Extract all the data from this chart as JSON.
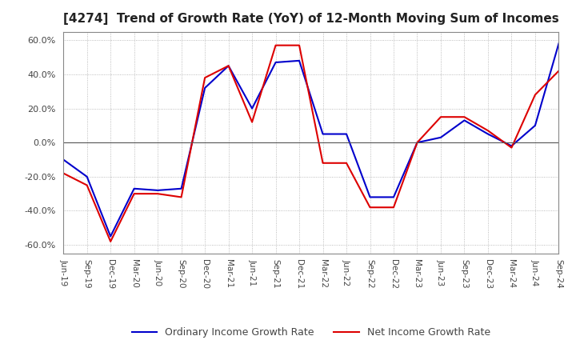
{
  "title": "[4274]  Trend of Growth Rate (YoY) of 12-Month Moving Sum of Incomes",
  "ylim": [
    -0.65,
    0.65
  ],
  "yticks": [
    -0.6,
    -0.4,
    -0.2,
    0.0,
    0.2,
    0.4,
    0.6
  ],
  "background_color": "#ffffff",
  "grid_color": "#aaaaaa",
  "ordinary_color": "#0000cc",
  "net_color": "#dd0000",
  "legend_labels": [
    "Ordinary Income Growth Rate",
    "Net Income Growth Rate"
  ],
  "x_labels": [
    "Jun-19",
    "Sep-19",
    "Dec-19",
    "Mar-20",
    "Jun-20",
    "Sep-20",
    "Dec-20",
    "Mar-21",
    "Jun-21",
    "Sep-21",
    "Dec-21",
    "Mar-22",
    "Jun-22",
    "Sep-22",
    "Dec-22",
    "Mar-23",
    "Jun-23",
    "Sep-23",
    "Dec-23",
    "Mar-24",
    "Jun-24",
    "Sep-24"
  ],
  "ordinary_income": [
    -0.1,
    -0.2,
    -0.55,
    -0.27,
    -0.28,
    -0.27,
    0.32,
    0.45,
    0.2,
    0.47,
    0.48,
    0.05,
    0.05,
    -0.32,
    -0.32,
    0.0,
    0.03,
    0.13,
    0.05,
    -0.02,
    0.1,
    0.58
  ],
  "net_income": [
    -0.18,
    -0.25,
    -0.58,
    -0.3,
    -0.3,
    -0.32,
    0.38,
    0.45,
    0.12,
    0.57,
    0.57,
    -0.12,
    -0.12,
    -0.38,
    -0.38,
    0.0,
    0.15,
    0.15,
    0.07,
    -0.03,
    0.28,
    0.42
  ]
}
